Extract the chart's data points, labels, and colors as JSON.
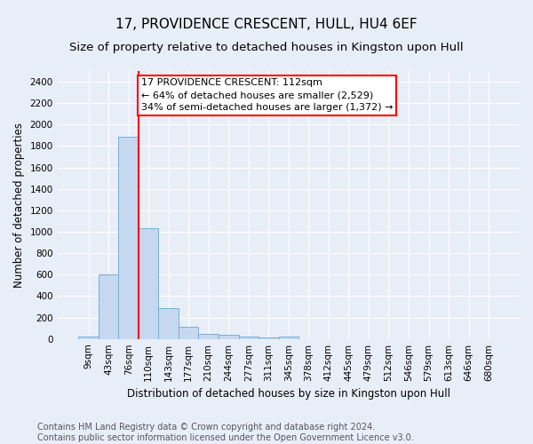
{
  "title": "17, PROVIDENCE CRESCENT, HULL, HU4 6EF",
  "subtitle": "Size of property relative to detached houses in Kingston upon Hull",
  "xlabel": "Distribution of detached houses by size in Kingston upon Hull",
  "ylabel": "Number of detached properties",
  "footer": "Contains HM Land Registry data © Crown copyright and database right 2024.\nContains public sector information licensed under the Open Government Licence v3.0.",
  "bin_labels": [
    "9sqm",
    "43sqm",
    "76sqm",
    "110sqm",
    "143sqm",
    "177sqm",
    "210sqm",
    "244sqm",
    "277sqm",
    "311sqm",
    "345sqm",
    "378sqm",
    "412sqm",
    "445sqm",
    "479sqm",
    "512sqm",
    "546sqm",
    "579sqm",
    "613sqm",
    "646sqm",
    "680sqm"
  ],
  "bar_values": [
    20,
    600,
    1890,
    1030,
    290,
    110,
    48,
    40,
    20,
    15,
    20,
    0,
    0,
    0,
    0,
    0,
    0,
    0,
    0,
    0,
    0
  ],
  "bar_color": "#c5d8f0",
  "bar_edge_color": "#7aafd4",
  "property_line_color": "red",
  "annotation_text": "17 PROVIDENCE CRESCENT: 112sqm\n← 64% of detached houses are smaller (2,529)\n34% of semi-detached houses are larger (1,372) →",
  "annotation_box_color": "white",
  "annotation_box_edge_color": "red",
  "ylim": [
    0,
    2500
  ],
  "yticks": [
    0,
    200,
    400,
    600,
    800,
    1000,
    1200,
    1400,
    1600,
    1800,
    2000,
    2200,
    2400
  ],
  "bg_color": "#e8eef8",
  "plot_bg_color": "#e8eef8",
  "title_fontsize": 11,
  "subtitle_fontsize": 9.5,
  "axis_label_fontsize": 8.5,
  "tick_fontsize": 7.5,
  "footer_fontsize": 7,
  "annotation_fontsize": 8
}
